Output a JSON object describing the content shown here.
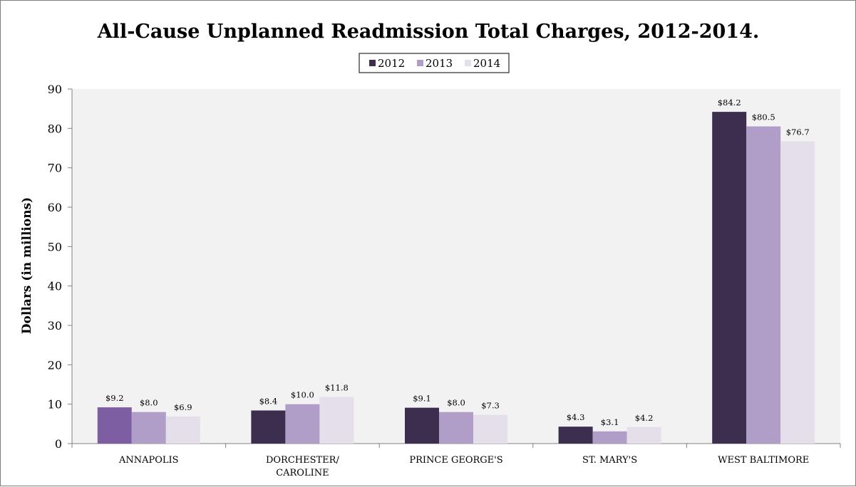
{
  "chart_data": {
    "type": "bar",
    "title": "All-Cause Unplanned Readmission Total Charges, 2012-2014.",
    "ylabel": "Dollars (in millions)",
    "xlabel": "",
    "ylim": [
      0,
      90
    ],
    "yticks": [
      0,
      10,
      20,
      30,
      40,
      50,
      60,
      70,
      80,
      90
    ],
    "categories": [
      [
        "ANNAPOLIS"
      ],
      [
        "DORCHESTER/",
        "CAROLINE"
      ],
      [
        "PRINCE GEORGE'S"
      ],
      [
        "ST. MARY'S"
      ],
      [
        "WEST BALTIMORE"
      ]
    ],
    "series": [
      {
        "name": "2012",
        "color": "#3d2e4f",
        "values": [
          9.2,
          8.4,
          9.1,
          4.3,
          84.2
        ],
        "labels": [
          "$9.2",
          "$8.4",
          "$9.1",
          "$4.3",
          "$84.2"
        ]
      },
      {
        "name": "2013",
        "color": "#b09ec8",
        "values": [
          8.0,
          10.0,
          8.0,
          3.1,
          80.5
        ],
        "labels": [
          "$8.0",
          "$10.0",
          "$8.0",
          "$3.1",
          "$80.5"
        ]
      },
      {
        "name": "2014",
        "color": "#e5dfeb",
        "values": [
          6.9,
          11.8,
          7.3,
          4.2,
          76.7
        ],
        "labels": [
          "$6.9",
          "$11.8",
          "$7.3",
          "$4.2",
          "$76.7"
        ]
      }
    ],
    "highlight": {
      "series": 0,
      "category": 0,
      "color": "#7d5ea3"
    },
    "legend": "top-center",
    "grid": false,
    "plot_background": "#f2f2f2"
  }
}
